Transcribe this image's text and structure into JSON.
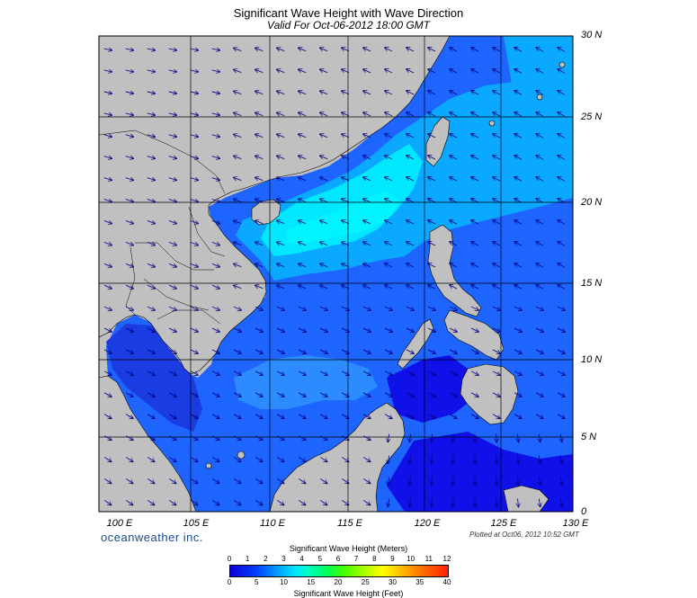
{
  "title": "Significant Wave Height with Wave Direction",
  "subtitle": "Valid For Oct-06-2012 18:00 GMT",
  "lat_labels": [
    "30 N",
    "25 N",
    "20 N",
    "15 N",
    "10 N",
    "5 N",
    "0"
  ],
  "lon_labels": [
    "100 E",
    "105 E",
    "110 E",
    "115 E",
    "120 E",
    "125 E",
    "130 E"
  ],
  "brand": "oceanweather inc.",
  "plotted": "Plotted at Oct06, 2012 10:52 GMT",
  "colorbar": {
    "title_top": "Significant Wave Height (Meters)",
    "title_bottom": "Significant Wave Height (Feet)",
    "meters": [
      "0",
      "1",
      "2",
      "3",
      "4",
      "5",
      "6",
      "7",
      "8",
      "9",
      "10",
      "11",
      "12"
    ],
    "feet": [
      "0",
      "5",
      "10",
      "15",
      "20",
      "25",
      "30",
      "35",
      "40"
    ]
  },
  "colors": {
    "land": "#c0c0c0",
    "deep_sea": "#1a1aff",
    "mid_sea": "#1e64ff",
    "high_sea": "#00e8ff"
  }
}
